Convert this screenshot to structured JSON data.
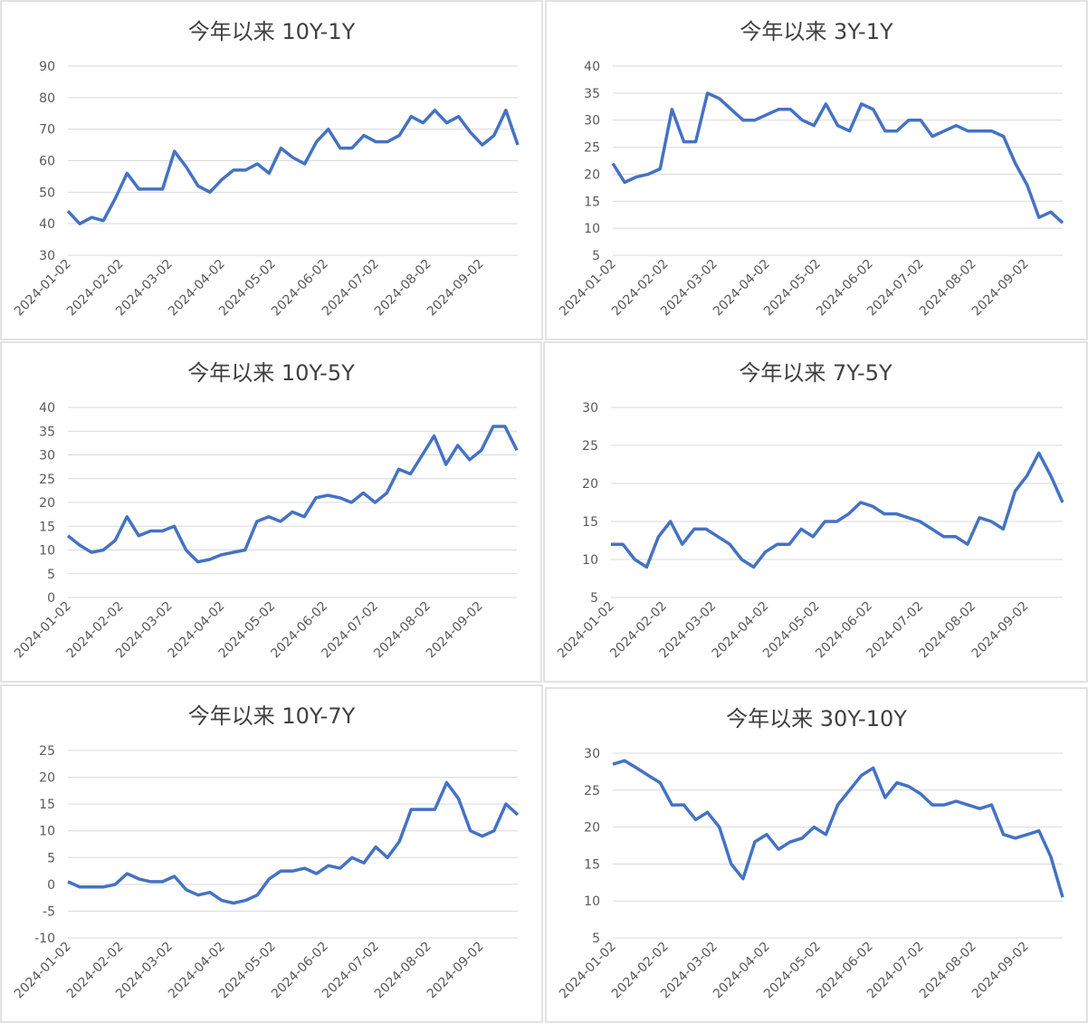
{
  "chart_data": [
    {
      "type": "line",
      "title": "今年以来 10Y-1Y",
      "color": "#4472c4",
      "grid": true,
      "x": [
        "2024-01-02",
        "2024-01-09",
        "2024-01-16",
        "2024-01-23",
        "2024-01-30",
        "2024-02-06",
        "2024-02-13",
        "2024-02-20",
        "2024-02-27",
        "2024-03-05",
        "2024-03-12",
        "2024-03-19",
        "2024-03-26",
        "2024-04-02",
        "2024-04-09",
        "2024-04-16",
        "2024-04-23",
        "2024-04-30",
        "2024-05-07",
        "2024-05-14",
        "2024-05-21",
        "2024-05-28",
        "2024-06-04",
        "2024-06-11",
        "2024-06-18",
        "2024-06-25",
        "2024-07-02",
        "2024-07-09",
        "2024-07-16",
        "2024-07-23",
        "2024-07-30",
        "2024-08-06",
        "2024-08-13",
        "2024-08-20",
        "2024-08-27",
        "2024-09-03",
        "2024-09-10",
        "2024-09-17",
        "2024-09-24"
      ],
      "values": [
        44,
        40,
        42,
        41,
        48,
        56,
        51,
        51,
        51,
        63,
        58,
        52,
        50,
        54,
        57,
        57,
        59,
        56,
        64,
        61,
        59,
        66,
        70,
        64,
        64,
        68,
        66,
        66,
        68,
        74,
        72,
        76,
        72,
        74,
        69,
        65,
        68,
        76,
        65
      ],
      "ylim": [
        30,
        90
      ],
      "yticks": [
        30,
        40,
        50,
        60,
        70,
        80,
        90
      ],
      "xticks": [
        "2024-01-02",
        "2024-02-02",
        "2024-03-02",
        "2024-04-02",
        "2024-05-02",
        "2024-06-02",
        "2024-07-02",
        "2024-08-02",
        "2024-09-02"
      ]
    },
    {
      "type": "line",
      "title": "今年以来 3Y-1Y",
      "color": "#4472c4",
      "grid": true,
      "x": [
        "2024-01-02",
        "2024-01-09",
        "2024-01-16",
        "2024-01-23",
        "2024-01-30",
        "2024-02-06",
        "2024-02-13",
        "2024-02-20",
        "2024-02-27",
        "2024-03-05",
        "2024-03-12",
        "2024-03-19",
        "2024-03-26",
        "2024-04-02",
        "2024-04-09",
        "2024-04-16",
        "2024-04-23",
        "2024-04-30",
        "2024-05-07",
        "2024-05-14",
        "2024-05-21",
        "2024-05-28",
        "2024-06-04",
        "2024-06-11",
        "2024-06-18",
        "2024-06-25",
        "2024-07-02",
        "2024-07-09",
        "2024-07-16",
        "2024-07-23",
        "2024-07-30",
        "2024-08-06",
        "2024-08-13",
        "2024-08-20",
        "2024-08-27",
        "2024-09-03",
        "2024-09-10",
        "2024-09-17",
        "2024-09-24"
      ],
      "values": [
        22,
        18.5,
        19.5,
        20,
        21,
        32,
        26,
        26,
        35,
        34,
        32,
        30,
        30,
        31,
        32,
        32,
        30,
        29,
        33,
        29,
        28,
        33,
        32,
        28,
        28,
        30,
        30,
        27,
        28,
        29,
        28,
        28,
        28,
        27,
        22,
        18,
        12,
        13,
        11
      ],
      "ylim": [
        5,
        40
      ],
      "yticks": [
        5,
        10,
        15,
        20,
        25,
        30,
        35,
        40
      ],
      "xticks": [
        "2024-01-02",
        "2024-02-02",
        "2024-03-02",
        "2024-04-02",
        "2024-05-02",
        "2024-06-02",
        "2024-07-02",
        "2024-08-02",
        "2024-09-02"
      ]
    },
    {
      "type": "line",
      "title": "今年以来 10Y-5Y",
      "color": "#4472c4",
      "grid": true,
      "x": [
        "2024-01-02",
        "2024-01-09",
        "2024-01-16",
        "2024-01-23",
        "2024-01-30",
        "2024-02-06",
        "2024-02-13",
        "2024-02-20",
        "2024-02-27",
        "2024-03-05",
        "2024-03-12",
        "2024-03-19",
        "2024-03-26",
        "2024-04-02",
        "2024-04-09",
        "2024-04-16",
        "2024-04-23",
        "2024-04-30",
        "2024-05-07",
        "2024-05-14",
        "2024-05-21",
        "2024-05-28",
        "2024-06-04",
        "2024-06-11",
        "2024-06-18",
        "2024-06-25",
        "2024-07-02",
        "2024-07-09",
        "2024-07-16",
        "2024-07-23",
        "2024-07-30",
        "2024-08-06",
        "2024-08-13",
        "2024-08-20",
        "2024-08-27",
        "2024-09-03",
        "2024-09-10",
        "2024-09-17",
        "2024-09-24"
      ],
      "values": [
        13,
        11,
        9.5,
        10,
        12,
        17,
        13,
        14,
        14,
        15,
        10,
        7.5,
        8,
        9,
        9.5,
        10,
        16,
        17,
        16,
        18,
        17,
        21,
        21.5,
        21,
        20,
        22,
        20,
        22,
        27,
        26,
        30,
        34,
        28,
        32,
        29,
        31,
        36,
        36,
        31
      ],
      "ylim": [
        0,
        40
      ],
      "yticks": [
        0,
        5,
        10,
        15,
        20,
        25,
        30,
        35,
        40
      ],
      "xticks": [
        "2024-01-02",
        "2024-02-02",
        "2024-03-02",
        "2024-04-02",
        "2024-05-02",
        "2024-06-02",
        "2024-07-02",
        "2024-08-02",
        "2024-09-02"
      ]
    },
    {
      "type": "line",
      "title": "今年以来 7Y-5Y",
      "color": "#4472c4",
      "grid": true,
      "x": [
        "2024-01-02",
        "2024-01-09",
        "2024-01-16",
        "2024-01-23",
        "2024-01-30",
        "2024-02-06",
        "2024-02-13",
        "2024-02-20",
        "2024-02-27",
        "2024-03-05",
        "2024-03-12",
        "2024-03-19",
        "2024-03-26",
        "2024-04-02",
        "2024-04-09",
        "2024-04-16",
        "2024-04-23",
        "2024-04-30",
        "2024-05-07",
        "2024-05-14",
        "2024-05-21",
        "2024-05-28",
        "2024-06-04",
        "2024-06-11",
        "2024-06-18",
        "2024-06-25",
        "2024-07-02",
        "2024-07-09",
        "2024-07-16",
        "2024-07-23",
        "2024-07-30",
        "2024-08-06",
        "2024-08-13",
        "2024-08-20",
        "2024-08-27",
        "2024-09-03",
        "2024-09-10",
        "2024-09-17",
        "2024-09-24"
      ],
      "values": [
        12,
        12,
        10,
        9,
        13,
        15,
        12,
        14,
        14,
        13,
        12,
        10,
        9,
        11,
        12,
        12,
        14,
        13,
        15,
        15,
        16,
        17.5,
        17,
        16,
        16,
        15.5,
        15,
        14,
        13,
        13,
        12,
        15.5,
        15,
        14,
        19,
        21,
        24,
        21,
        17.5
      ],
      "ylim": [
        5,
        30
      ],
      "yticks": [
        5,
        10,
        15,
        20,
        25,
        30
      ],
      "xticks": [
        "2024-01-02",
        "2024-02-02",
        "2024-03-02",
        "2024-04-02",
        "2024-05-02",
        "2024-06-02",
        "2024-07-02",
        "2024-08-02",
        "2024-09-02"
      ]
    },
    {
      "type": "line",
      "title": "今年以来 10Y-7Y",
      "color": "#4472c4",
      "grid": true,
      "x": [
        "2024-01-02",
        "2024-01-09",
        "2024-01-16",
        "2024-01-23",
        "2024-01-30",
        "2024-02-06",
        "2024-02-13",
        "2024-02-20",
        "2024-02-27",
        "2024-03-05",
        "2024-03-12",
        "2024-03-19",
        "2024-03-26",
        "2024-04-02",
        "2024-04-09",
        "2024-04-16",
        "2024-04-23",
        "2024-04-30",
        "2024-05-07",
        "2024-05-14",
        "2024-05-21",
        "2024-05-28",
        "2024-06-04",
        "2024-06-11",
        "2024-06-18",
        "2024-06-25",
        "2024-07-02",
        "2024-07-09",
        "2024-07-16",
        "2024-07-23",
        "2024-07-30",
        "2024-08-06",
        "2024-08-13",
        "2024-08-20",
        "2024-08-27",
        "2024-09-03",
        "2024-09-10",
        "2024-09-17",
        "2024-09-24"
      ],
      "values": [
        0.5,
        -0.5,
        -0.5,
        -0.5,
        0,
        2,
        1,
        0.5,
        0.5,
        1.5,
        -1,
        -2,
        -1.5,
        -3,
        -3.5,
        -3,
        -2,
        1,
        2.5,
        2.5,
        3,
        2,
        3.5,
        3,
        5,
        4,
        7,
        5,
        8,
        14,
        14,
        14,
        19,
        16,
        10,
        9,
        10,
        15,
        13
      ],
      "ylim": [
        -10,
        25
      ],
      "yticks": [
        -10,
        -5,
        0,
        5,
        10,
        15,
        20,
        25
      ],
      "xticks": [
        "2024-01-02",
        "2024-02-02",
        "2024-03-02",
        "2024-04-02",
        "2024-05-02",
        "2024-06-02",
        "2024-07-02",
        "2024-08-02",
        "2024-09-02"
      ]
    },
    {
      "type": "line",
      "title": "今年以来 30Y-10Y",
      "color": "#4472c4",
      "grid": true,
      "x": [
        "2024-01-02",
        "2024-01-09",
        "2024-01-16",
        "2024-01-23",
        "2024-01-30",
        "2024-02-06",
        "2024-02-13",
        "2024-02-20",
        "2024-02-27",
        "2024-03-05",
        "2024-03-12",
        "2024-03-19",
        "2024-03-26",
        "2024-04-02",
        "2024-04-09",
        "2024-04-16",
        "2024-04-23",
        "2024-04-30",
        "2024-05-07",
        "2024-05-14",
        "2024-05-21",
        "2024-05-28",
        "2024-06-04",
        "2024-06-11",
        "2024-06-18",
        "2024-06-25",
        "2024-07-02",
        "2024-07-09",
        "2024-07-16",
        "2024-07-23",
        "2024-07-30",
        "2024-08-06",
        "2024-08-13",
        "2024-08-20",
        "2024-08-27",
        "2024-09-03",
        "2024-09-10",
        "2024-09-17",
        "2024-09-24"
      ],
      "values": [
        28.5,
        29,
        28,
        27,
        26,
        23,
        23,
        21,
        22,
        20,
        15,
        13,
        18,
        19,
        17,
        18,
        18.5,
        20,
        19,
        23,
        25,
        27,
        28,
        24,
        26,
        25.5,
        24.5,
        23,
        23,
        23.5,
        23,
        22.5,
        23,
        19,
        18.5,
        19,
        19.5,
        16,
        10.5
      ],
      "ylim": [
        5,
        30
      ],
      "yticks": [
        5,
        10,
        15,
        20,
        25,
        30
      ],
      "xticks": [
        "2024-01-02",
        "2024-02-02",
        "2024-03-02",
        "2024-04-02",
        "2024-05-02",
        "2024-06-02",
        "2024-07-02",
        "2024-08-02",
        "2024-09-02"
      ]
    }
  ]
}
